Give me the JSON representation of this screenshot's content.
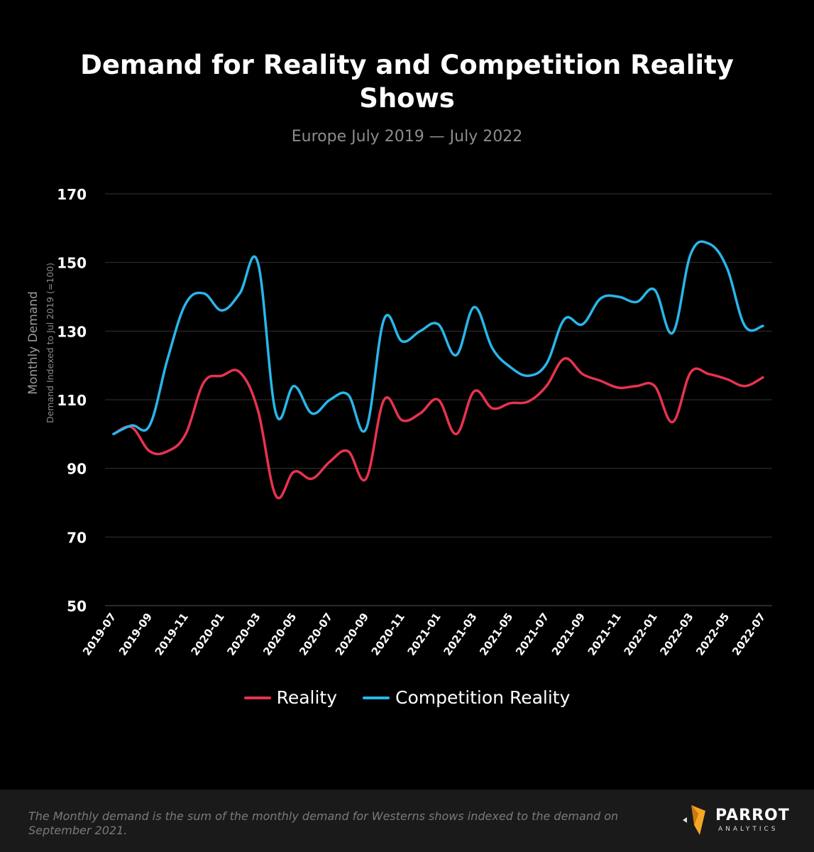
{
  "chart_data": {
    "type": "line",
    "title": "Demand for Reality and Competition Reality Shows",
    "subtitle": "Europe  July 2019 — July 2022",
    "ylabel": "Monthly Demand",
    "ylabel_sub": "Demand Indexed to  Jul 2019 (=100)",
    "ylim": [
      50,
      170
    ],
    "yticks": [
      50,
      70,
      90,
      110,
      130,
      150,
      170
    ],
    "grid": true,
    "legend_position": "bottom",
    "x": [
      "2019-07",
      "2019-08",
      "2019-09",
      "2019-10",
      "2019-11",
      "2019-12",
      "2020-01",
      "2020-02",
      "2020-03",
      "2020-04",
      "2020-05",
      "2020-06",
      "2020-07",
      "2020-08",
      "2020-09",
      "2020-10",
      "2020-11",
      "2020-12",
      "2021-01",
      "2021-02",
      "2021-03",
      "2021-04",
      "2021-05",
      "2021-06",
      "2021-07",
      "2021-08",
      "2021-09",
      "2021-10",
      "2021-11",
      "2021-12",
      "2022-01",
      "2022-02",
      "2022-03",
      "2022-04",
      "2022-05",
      "2022-06",
      "2022-07"
    ],
    "xticks": [
      "2019-07",
      "2019-09",
      "2019-11",
      "2020-01",
      "2020-03",
      "2020-05",
      "2020-07",
      "2020-09",
      "2020-11",
      "2021-01",
      "2021-03",
      "2021-05",
      "2021-07",
      "2021-09",
      "2021-11",
      "2022-01",
      "2022-03",
      "2022-05",
      "2022-07"
    ],
    "series": [
      {
        "name": "Reality",
        "color": "#e8334f",
        "values": [
          100,
          102,
          95,
          95,
          100,
          115,
          117,
          118,
          107,
          82,
          89,
          87,
          92,
          95,
          87,
          110,
          104,
          106,
          110,
          100,
          112.5,
          107.5,
          109,
          109.5,
          114,
          122,
          117.5,
          115.5,
          113.5,
          114,
          114,
          103.5,
          118,
          117.5,
          116,
          114,
          116.5
        ]
      },
      {
        "name": "Competition Reality",
        "color": "#29b6ea",
        "values": [
          100,
          102.5,
          102.5,
          122,
          138,
          141,
          136,
          141,
          150,
          106,
          114,
          106,
          110,
          111.5,
          101.5,
          133.5,
          127,
          130,
          132,
          123,
          137,
          125,
          119.5,
          117,
          120.5,
          133.5,
          132,
          139.5,
          140,
          138.5,
          142,
          129.5,
          152.5,
          155.5,
          148.5,
          131.5,
          131.5
        ]
      }
    ]
  },
  "footer": {
    "note": "The Monthly demand is the sum of the monthly demand for Westerns shows indexed to the demand on September 2021.",
    "logo_name": "PARROT",
    "logo_sub": "ANALYTICS",
    "brand_color": "#f5a623"
  }
}
